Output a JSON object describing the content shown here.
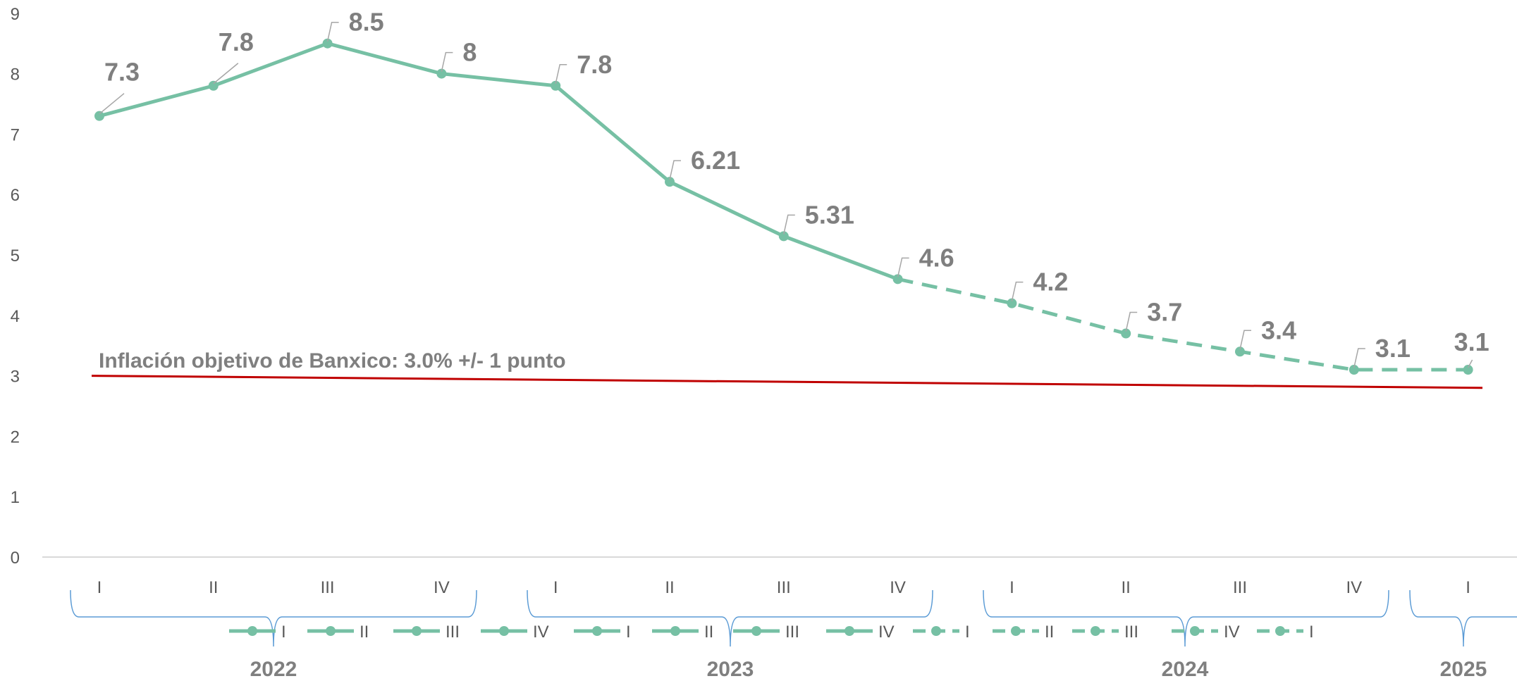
{
  "chart_data": {
    "type": "line",
    "ylim": [
      0,
      9
    ],
    "yticks": [
      "0",
      "1",
      "2",
      "3",
      "4",
      "5",
      "6",
      "7",
      "8",
      "9"
    ],
    "grid": false,
    "categories": [
      {
        "year": "2022",
        "quarter": "I"
      },
      {
        "year": "2022",
        "quarter": "II"
      },
      {
        "year": "2022",
        "quarter": "III"
      },
      {
        "year": "2022",
        "quarter": "IV"
      },
      {
        "year": "2023",
        "quarter": "I"
      },
      {
        "year": "2023",
        "quarter": "II"
      },
      {
        "year": "2023",
        "quarter": "III"
      },
      {
        "year": "2023",
        "quarter": "IV"
      },
      {
        "year": "2024",
        "quarter": "I"
      },
      {
        "year": "2024",
        "quarter": "II"
      },
      {
        "year": "2024",
        "quarter": "III"
      },
      {
        "year": "2024",
        "quarter": "IV"
      },
      {
        "year": "2025",
        "quarter": "I"
      }
    ],
    "years": [
      "2022",
      "2023",
      "2024",
      "2025"
    ],
    "series": [
      {
        "values": [
          7.3,
          7.8,
          8.5,
          8,
          7.8,
          6.21,
          5.31,
          4.6,
          4.2,
          3.7,
          3.4,
          3.1,
          3.1
        ],
        "labels": [
          "7.3",
          "7.8",
          "8.5",
          "8",
          "7.8",
          "6.21",
          "5.31",
          "4.6",
          "4.2",
          "3.7",
          "3.4",
          "3.1",
          "3.1"
        ],
        "dashed_from_index": 7,
        "color": "#76c0a4"
      }
    ],
    "target_line": {
      "label": "Inflación objetivo de Banxico: 3.0% +/- 1 punto",
      "start_value": 3.0,
      "end_value": 2.8,
      "color": "#c00000"
    },
    "legend": {
      "placement": "bottom",
      "entries": [
        "I",
        "II",
        "III",
        "IV",
        "I",
        "II",
        "III",
        "IV",
        "I",
        "II",
        "III",
        "IV",
        "I"
      ],
      "dashed_from_index": 8
    }
  }
}
